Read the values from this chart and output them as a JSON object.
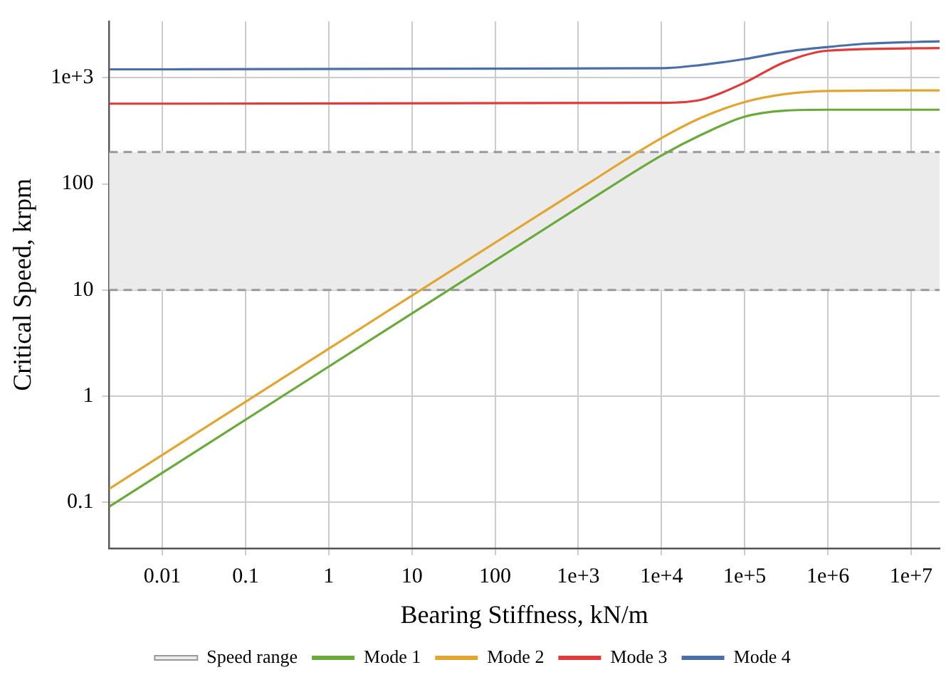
{
  "chart_data": {
    "type": "line",
    "xlabel": "Bearing Stiffness, kN/m",
    "ylabel": "Critical Speed, krpm",
    "log": "xy",
    "grid": true,
    "legend": "bottom",
    "marker": "none",
    "line_style": "solid",
    "xlim": [
      0.0023,
      22000000
    ],
    "ylim": [
      0.037,
      3400
    ],
    "xticks": [
      0.01,
      0.1,
      1,
      10,
      100,
      {
        "value": 1000,
        "label": "1e+3"
      },
      {
        "value": 10000,
        "label": "1e+4"
      },
      {
        "value": 100000,
        "label": "1e+5"
      },
      {
        "value": 1000000,
        "label": "1e+6"
      },
      {
        "value": 10000000,
        "label": "1e+7"
      }
    ],
    "yticks": [
      0.1,
      1,
      10,
      100,
      {
        "value": 1000,
        "label": "1e+3"
      }
    ],
    "bands": [
      {
        "axis": "y",
        "from": 10,
        "to": 200,
        "label": "Speed range",
        "color": "#ebebeb"
      }
    ],
    "ref_lines": [
      {
        "axis": "y",
        "value": 10,
        "color": "#999999",
        "line_style": "dashed"
      },
      {
        "axis": "y",
        "value": 200,
        "color": "#999999",
        "line_style": "dashed"
      }
    ],
    "series": [
      {
        "name": "Mode 1",
        "color": "#6aaa3a",
        "x": [
          0.0023,
          1,
          1000,
          10000,
          30000,
          100000,
          300000,
          1000000,
          22000000
        ],
        "values": [
          0.091,
          1.9,
          60,
          185,
          290,
          430,
          490,
          500,
          500
        ]
      },
      {
        "name": "Mode 2",
        "color": "#e0a630",
        "x": [
          0.0023,
          1,
          1000,
          10000,
          30000,
          100000,
          300000,
          1000000,
          22000000
        ],
        "values": [
          0.134,
          2.8,
          88,
          270,
          420,
          590,
          700,
          750,
          760
        ]
      },
      {
        "name": "Mode 3",
        "color": "#e03a3a",
        "x": [
          0.0023,
          10000,
          30000,
          100000,
          300000,
          1000000,
          22000000
        ],
        "values": [
          570,
          580,
          620,
          900,
          1400,
          1800,
          1900
        ]
      },
      {
        "name": "Mode 4",
        "color": "#4a6fa8",
        "x": [
          0.0023,
          10000,
          30000,
          100000,
          300000,
          1000000,
          3000000,
          22000000
        ],
        "values": [
          1200,
          1230,
          1320,
          1500,
          1750,
          1950,
          2100,
          2200
        ]
      }
    ]
  }
}
